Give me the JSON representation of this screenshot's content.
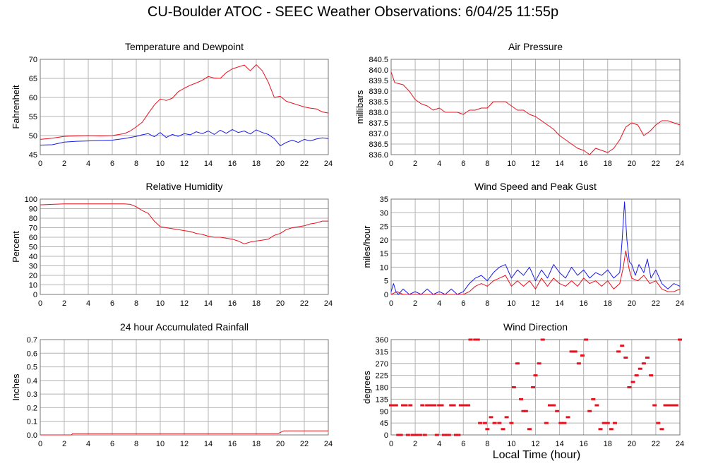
{
  "title": "CU-Boulder ATOC - SEEC Weather Observations: 6/04/25 11:55p",
  "xlabel_shared": "Local Time (hour)",
  "colors": {
    "red": "#e8101c",
    "blue": "#1a1ae6",
    "grid": "#b4b4b4",
    "frame": "#777777"
  },
  "chart_data": [
    {
      "id": "temp",
      "type": "line",
      "title": "Temperature and Dewpoint",
      "ylabel": "Fahrenheit",
      "xlim": [
        0,
        24
      ],
      "ylim": [
        45,
        70
      ],
      "xticks": [
        0,
        2,
        4,
        6,
        8,
        10,
        12,
        14,
        16,
        18,
        20,
        22,
        24
      ],
      "yticks": [
        45,
        50,
        55,
        60,
        65,
        70
      ],
      "ytick_labels": [
        "45",
        "50",
        "55",
        "60",
        "65",
        "70"
      ],
      "series": [
        {
          "color": "red",
          "x": [
            0,
            1,
            2,
            3,
            4,
            5,
            6,
            7,
            7.5,
            8,
            8.5,
            9,
            9.5,
            10,
            10.5,
            11,
            11.5,
            12,
            12.5,
            13,
            13.5,
            14,
            14.5,
            15,
            15.5,
            16,
            16.5,
            17,
            17.5,
            18,
            18.5,
            19,
            19.5,
            20,
            20.5,
            21,
            21.5,
            22,
            22.5,
            23,
            23.5,
            24
          ],
          "y": [
            49,
            49.3,
            49.8,
            49.9,
            50,
            49.9,
            50,
            50.5,
            51.2,
            52.3,
            53.5,
            55.8,
            58,
            59.6,
            59.2,
            59.8,
            61.5,
            62.4,
            63.2,
            63.8,
            64.5,
            65.5,
            65.1,
            65,
            66.5,
            67.5,
            68,
            68.5,
            67,
            68.6,
            67,
            64,
            60,
            60.3,
            59,
            58.5,
            58,
            57.5,
            57.2,
            57,
            56.2,
            55.9
          ]
        },
        {
          "color": "blue",
          "x": [
            0,
            1,
            2,
            3,
            4,
            5,
            6,
            7,
            8,
            8.5,
            9,
            9.5,
            10,
            10.5,
            11,
            11.5,
            12,
            12.5,
            13,
            13.5,
            14,
            14.5,
            15,
            15.5,
            16,
            16.5,
            17,
            17.5,
            18,
            18.5,
            19,
            19.5,
            20,
            20.5,
            21,
            21.5,
            22,
            22.5,
            23,
            23.5,
            24
          ],
          "y": [
            47.5,
            47.6,
            48.3,
            48.5,
            48.6,
            48.7,
            48.8,
            49.2,
            49.8,
            50.2,
            50.5,
            49.7,
            50.8,
            49.5,
            50.3,
            49.8,
            50.5,
            50.2,
            51,
            50.5,
            51.2,
            50.3,
            51.4,
            50.6,
            51.6,
            50.8,
            51.2,
            50.4,
            51.5,
            50.8,
            50.3,
            49.2,
            47.3,
            48.2,
            48.8,
            48.2,
            49,
            48.6,
            49.1,
            49.4,
            49.2
          ]
        }
      ]
    },
    {
      "id": "pressure",
      "type": "line",
      "title": "Air Pressure",
      "ylabel": "millibars",
      "xlim": [
        0,
        24
      ],
      "ylim": [
        836.0,
        840.5
      ],
      "xticks": [
        0,
        2,
        4,
        6,
        8,
        10,
        12,
        14,
        16,
        18,
        20,
        22,
        24
      ],
      "yticks": [
        836.0,
        836.5,
        837.0,
        837.5,
        838.0,
        838.5,
        839.0,
        839.5,
        840.0,
        840.5
      ],
      "ytick_labels": [
        "836.0",
        "836.5",
        "837.0",
        "837.5",
        "838.0",
        "838.5",
        "839.0",
        "839.5",
        "840.0",
        "840.5"
      ],
      "series": [
        {
          "color": "red",
          "x": [
            0,
            0.3,
            1,
            1.5,
            2,
            2.5,
            3,
            3.5,
            4,
            4.5,
            5,
            5.5,
            6,
            6.5,
            7,
            7.5,
            8,
            8.5,
            9,
            9.5,
            10,
            10.5,
            11,
            11.5,
            12,
            12.5,
            13,
            13.5,
            14,
            14.5,
            15,
            15.5,
            16,
            16.5,
            17,
            17.5,
            18,
            18.5,
            19,
            19.5,
            20,
            20.5,
            21,
            21.5,
            22,
            22.5,
            23,
            23.5,
            24
          ],
          "y": [
            839.9,
            839.4,
            839.3,
            839.0,
            838.6,
            838.4,
            838.3,
            838.1,
            838.2,
            838.0,
            838.0,
            838.0,
            837.9,
            838.1,
            838.1,
            838.2,
            838.2,
            838.5,
            838.5,
            838.5,
            838.3,
            838.1,
            838.1,
            837.9,
            837.8,
            837.6,
            837.4,
            837.2,
            836.9,
            836.7,
            836.5,
            836.3,
            836.2,
            836.0,
            836.3,
            836.2,
            836.1,
            836.3,
            836.7,
            837.3,
            837.5,
            837.4,
            836.9,
            837.1,
            837.4,
            837.6,
            837.6,
            837.5,
            837.4
          ]
        }
      ]
    },
    {
      "id": "rh",
      "type": "line",
      "title": "Relative Humidity",
      "ylabel": "Percent",
      "xlim": [
        0,
        24
      ],
      "ylim": [
        0,
        100
      ],
      "xticks": [
        0,
        2,
        4,
        6,
        8,
        10,
        12,
        14,
        16,
        18,
        20,
        22,
        24
      ],
      "yticks": [
        0,
        10,
        20,
        30,
        40,
        50,
        60,
        70,
        80,
        90,
        100
      ],
      "ytick_labels": [
        "0",
        "10",
        "20",
        "30",
        "40",
        "50",
        "60",
        "70",
        "80",
        "90",
        "100"
      ],
      "series": [
        {
          "color": "red",
          "x": [
            0,
            1,
            2,
            3,
            4,
            5,
            6,
            7,
            7.5,
            8,
            8.5,
            9,
            9.5,
            10,
            10.5,
            11,
            11.5,
            12,
            12.5,
            13,
            13.5,
            14,
            14.5,
            15,
            15.5,
            16,
            16.5,
            17,
            17.5,
            18,
            18.5,
            19,
            19.5,
            20,
            20.5,
            21,
            21.5,
            22,
            22.5,
            23,
            23.5,
            24
          ],
          "y": [
            94,
            94.5,
            95,
            95,
            95,
            95,
            95,
            95,
            94.5,
            92,
            88,
            85,
            77,
            71,
            70,
            69,
            68,
            67,
            66,
            64,
            63,
            61,
            60,
            60,
            59,
            58,
            56,
            53,
            55,
            56,
            57,
            58,
            62,
            64,
            68,
            70,
            71,
            72,
            74,
            75,
            77,
            77
          ]
        }
      ]
    },
    {
      "id": "wind",
      "type": "line",
      "title": "Wind Speed and Peak Gust",
      "ylabel": "miles/hour",
      "xlim": [
        0,
        24
      ],
      "ylim": [
        0,
        35
      ],
      "xticks": [
        0,
        2,
        4,
        6,
        8,
        10,
        12,
        14,
        16,
        18,
        20,
        22,
        24
      ],
      "yticks": [
        0,
        5,
        10,
        15,
        20,
        25,
        30,
        35
      ],
      "ytick_labels": [
        "0",
        "5",
        "10",
        "15",
        "20",
        "25",
        "30",
        "35"
      ],
      "series": [
        {
          "color": "blue",
          "x": [
            0,
            0.2,
            0.4,
            0.6,
            1,
            1.5,
            2,
            2.5,
            3,
            3.5,
            4,
            4.5,
            5,
            5.5,
            6,
            6.5,
            7,
            7.5,
            8,
            8.5,
            9,
            9.5,
            10,
            10.5,
            11,
            11.5,
            12,
            12.5,
            13,
            13.5,
            14,
            14.5,
            15,
            15.5,
            16,
            16.5,
            17,
            17.5,
            18,
            18.5,
            19,
            19.2,
            19.4,
            19.6,
            19.8,
            20,
            20.3,
            20.6,
            21,
            21.3,
            21.6,
            22,
            22.5,
            23,
            23.5,
            24
          ],
          "y": [
            1,
            4,
            1,
            0,
            2,
            0,
            1,
            0,
            2,
            0,
            1,
            0,
            2,
            0,
            1,
            4,
            6,
            7,
            5,
            8,
            10,
            11,
            6,
            9,
            7,
            10,
            5,
            9,
            6,
            11,
            8,
            6,
            10,
            7,
            9,
            6,
            8,
            7,
            9,
            6,
            8,
            20,
            34,
            20,
            12,
            11,
            7,
            11,
            8,
            13,
            6,
            9,
            4,
            2,
            4,
            3
          ]
        },
        {
          "color": "red",
          "x": [
            0,
            0.5,
            1,
            2,
            3,
            4,
            5,
            6,
            6.5,
            7,
            7.5,
            8,
            8.5,
            9,
            9.5,
            10,
            10.5,
            11,
            11.5,
            12,
            12.5,
            13,
            13.5,
            14,
            14.5,
            15,
            15.5,
            16,
            16.5,
            17,
            17.5,
            18,
            18.5,
            19,
            19.3,
            19.5,
            19.8,
            20,
            20.5,
            21,
            21.5,
            22,
            22.5,
            23,
            23.5,
            24
          ],
          "y": [
            0,
            1,
            0,
            0,
            0,
            0,
            0,
            0,
            1,
            3,
            4,
            3,
            5,
            6,
            7,
            3,
            5,
            3,
            5,
            2,
            6,
            3,
            6,
            4,
            3,
            5,
            3,
            6,
            4,
            5,
            3,
            5,
            2,
            4,
            10,
            16,
            9,
            6,
            5,
            7,
            4,
            5,
            2,
            1,
            1,
            2
          ]
        }
      ]
    },
    {
      "id": "rain",
      "type": "line",
      "title": "24 hour Accumulated Rainfall",
      "ylabel": "Inches",
      "xlim": [
        0,
        24
      ],
      "ylim": [
        0,
        0.7
      ],
      "xticks": [
        0,
        2,
        4,
        6,
        8,
        10,
        12,
        14,
        16,
        18,
        20,
        22,
        24
      ],
      "yticks": [
        0,
        0.1,
        0.2,
        0.3,
        0.4,
        0.5,
        0.6,
        0.7
      ],
      "ytick_labels": [
        "0.0",
        "0.1",
        "0.2",
        "0.3",
        "0.4",
        "0.5",
        "0.6",
        "0.7"
      ],
      "series": [
        {
          "color": "red",
          "x": [
            0,
            2.6,
            2.7,
            19.8,
            20.3,
            24
          ],
          "y": [
            0,
            0,
            0.01,
            0.01,
            0.03,
            0.03
          ]
        }
      ]
    },
    {
      "id": "direction",
      "type": "scatter",
      "title": "Wind Direction",
      "ylabel": "degrees",
      "xlim": [
        0,
        24
      ],
      "ylim": [
        0,
        360
      ],
      "xticks": [
        0,
        2,
        4,
        6,
        8,
        10,
        12,
        14,
        16,
        18,
        20,
        22,
        24
      ],
      "yticks": [
        0,
        45,
        90,
        135,
        180,
        225,
        270,
        315,
        360
      ],
      "ytick_labels": [
        "0",
        "45",
        "90",
        "135",
        "180",
        "225",
        "270",
        "315",
        "360"
      ],
      "series": [
        {
          "color": "red",
          "x": [
            0,
            0.2,
            0.4,
            0.6,
            0.8,
            1,
            1.2,
            1.4,
            1.6,
            1.8,
            2,
            2.2,
            2.4,
            2.6,
            2.8,
            3,
            3.2,
            3.4,
            3.6,
            3.8,
            4,
            4.2,
            4.4,
            4.6,
            4.8,
            5,
            5.2,
            5.4,
            5.6,
            5.8,
            6,
            6.2,
            6.4,
            6.6,
            7,
            7.2,
            7.4,
            7.8,
            8,
            8.3,
            8.6,
            9,
            9.3,
            9.6,
            10,
            10.2,
            10.5,
            10.8,
            11,
            11.2,
            11.5,
            11.8,
            12,
            12.3,
            12.6,
            12.9,
            13.2,
            13.5,
            13.8,
            14.1,
            14.4,
            14.7,
            15,
            15.3,
            15.6,
            15.9,
            16.2,
            16.5,
            16.8,
            17.1,
            17.4,
            17.7,
            18,
            18.3,
            18.6,
            18.9,
            19.2,
            19.5,
            19.8,
            20.1,
            20.4,
            20.7,
            21,
            21.3,
            21.6,
            21.9,
            22.2,
            22.5,
            22.8,
            23.1,
            23.4,
            23.7,
            24
          ],
          "y": [
            112,
            112,
            112,
            0,
            0,
            112,
            112,
            0,
            112,
            0,
            0,
            0,
            0,
            112,
            0,
            112,
            112,
            112,
            112,
            0,
            112,
            112,
            0,
            0,
            0,
            112,
            112,
            0,
            0,
            112,
            112,
            112,
            112,
            360,
            360,
            360,
            45,
            45,
            22,
            67,
            45,
            45,
            22,
            67,
            45,
            180,
            270,
            135,
            90,
            90,
            22,
            180,
            225,
            270,
            360,
            45,
            112,
            112,
            90,
            45,
            45,
            67,
            315,
            315,
            270,
            300,
            360,
            90,
            135,
            112,
            22,
            45,
            45,
            22,
            45,
            315,
            337,
            292,
            180,
            200,
            225,
            250,
            270,
            292,
            225,
            112,
            45,
            22,
            112,
            112,
            112,
            112,
            360
          ]
        }
      ]
    }
  ]
}
